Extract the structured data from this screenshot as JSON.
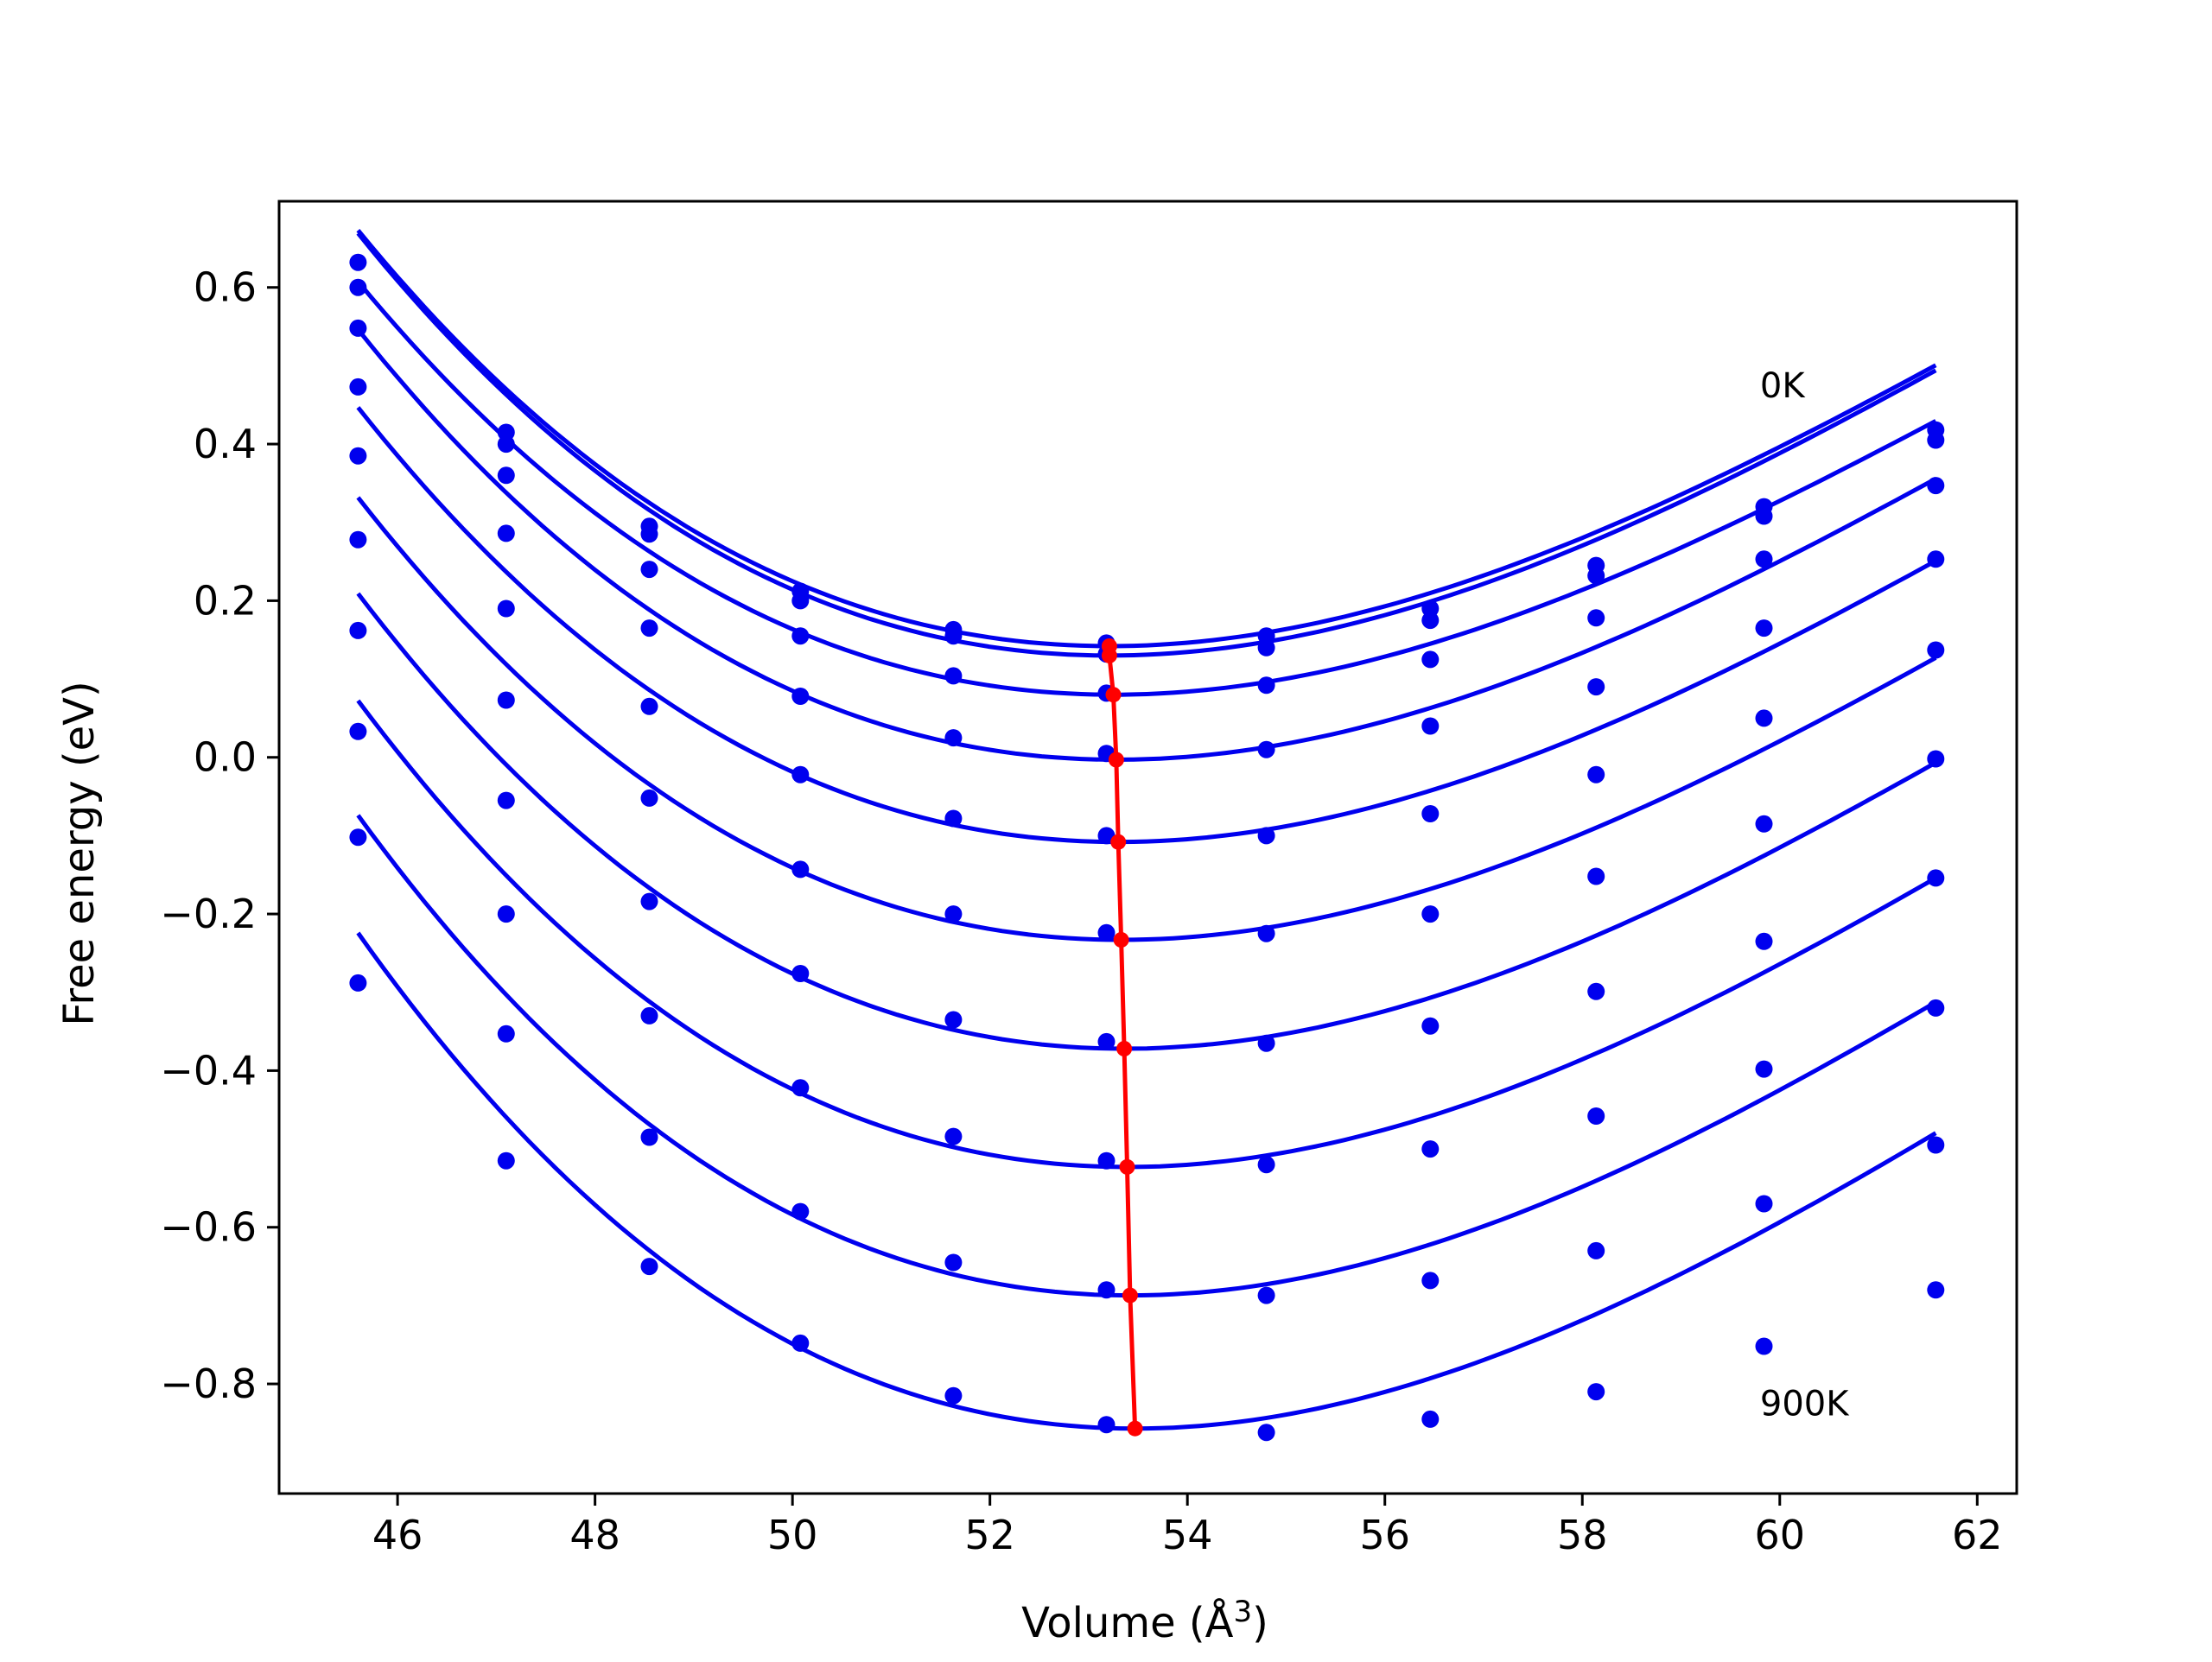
{
  "chart_data": {
    "type": "line",
    "title": "",
    "xlabel": "Volume (Å",
    "xlabel_sup": "3",
    "xlabel_close": ")",
    "ylabel": "Free energy (eV)",
    "xlim": [
      44.8,
      62.4
    ],
    "ylim": [
      -0.94,
      0.71
    ],
    "x_ticks": [
      46,
      48,
      50,
      52,
      54,
      56,
      58,
      60,
      62
    ],
    "y_ticks": [
      0.6,
      0.4,
      0.2,
      0.0,
      -0.2,
      -0.4,
      -0.6,
      -0.8
    ],
    "grid": false,
    "legend": "none",
    "annotations": [
      {
        "text": "0K",
        "x": 59.8,
        "y": 0.475
      },
      {
        "text": "900K",
        "x": 59.8,
        "y": -0.825
      }
    ],
    "points_color": "#0000ee",
    "curve_color": "#0000ee",
    "minimum_line_color": "#ff0000",
    "volumes": [
      45.6,
      47.1,
      48.55,
      50.08,
      51.63,
      53.18,
      54.8,
      56.46,
      58.14,
      59.84,
      61.58
    ],
    "series": [
      {
        "points": [
          0.632,
          0.415,
          0.295,
          0.212,
          0.163,
          0.146,
          0.155,
          0.19,
          0.245,
          0.32,
          0.418
        ],
        "fit": {
          "A": 0.00724,
          "vmin": 53.21,
          "emin": 0.142
        }
      },
      {
        "points": [
          0.6,
          0.4,
          0.285,
          0.2,
          0.155,
          0.132,
          0.14,
          0.175,
          0.232,
          0.308,
          0.405
        ],
        "fit": {
          "A": 0.00735,
          "vmin": 53.21,
          "emin": 0.13
        }
      },
      {
        "points": [
          0.548,
          0.36,
          0.24,
          0.155,
          0.104,
          0.082,
          0.092,
          0.125,
          0.178,
          0.253,
          0.347
        ],
        "fit": {
          "A": 0.00711,
          "vmin": 53.25,
          "emin": 0.08
        }
      },
      {
        "points": [
          0.473,
          0.286,
          0.165,
          0.078,
          0.025,
          0.005,
          0.01,
          0.04,
          0.09,
          0.165,
          0.253
        ],
        "fit": {
          "A": 0.00734,
          "vmin": 53.28,
          "emin": -0.003
        }
      },
      {
        "points": [
          0.385,
          0.19,
          0.065,
          -0.022,
          -0.078,
          -0.1,
          -0.1,
          -0.072,
          -0.022,
          0.05,
          0.137
        ],
        "fit": {
          "A": 0.00737,
          "vmin": 53.3,
          "emin": -0.108
        }
      },
      {
        "points": [
          0.278,
          0.073,
          -0.052,
          -0.143,
          -0.2,
          -0.224,
          -0.225,
          -0.2,
          -0.152,
          -0.085,
          -0.002
        ],
        "fit": {
          "A": 0.00744,
          "vmin": 53.33,
          "emin": -0.233
        }
      },
      {
        "points": [
          0.162,
          -0.055,
          -0.184,
          -0.276,
          -0.335,
          -0.363,
          -0.365,
          -0.343,
          -0.299,
          -0.235,
          -0.154
        ],
        "fit": {
          "A": 0.00759,
          "vmin": 53.36,
          "emin": -0.372
        }
      },
      {
        "points": [
          0.033,
          -0.2,
          -0.33,
          -0.422,
          -0.484,
          -0.515,
          -0.52,
          -0.5,
          -0.458,
          -0.398,
          -0.32
        ],
        "fit": {
          "A": 0.00771,
          "vmin": 53.39,
          "emin": -0.523
        }
      },
      {
        "points": [
          -0.102,
          -0.353,
          -0.485,
          -0.58,
          -0.645,
          -0.68,
          -0.687,
          -0.668,
          -0.63,
          -0.57,
          -0.495
        ],
        "fit": {
          "A": 0.00787,
          "vmin": 53.42,
          "emin": -0.687
        }
      },
      {
        "points": [
          -0.288,
          -0.515,
          -0.65,
          -0.748,
          -0.815,
          -0.852,
          -0.862,
          -0.845,
          -0.81,
          -0.752,
          -0.68
        ],
        "fit": {
          "A": 0.00801,
          "vmin": 53.47,
          "emin": -0.857
        }
      }
    ],
    "minimum_line": {
      "x": [
        53.21,
        53.21,
        53.25,
        53.28,
        53.3,
        53.33,
        53.36,
        53.39,
        53.42,
        53.47
      ],
      "y": [
        0.142,
        0.13,
        0.08,
        -0.003,
        -0.108,
        -0.233,
        -0.372,
        -0.523,
        -0.687,
        -0.857
      ]
    }
  }
}
